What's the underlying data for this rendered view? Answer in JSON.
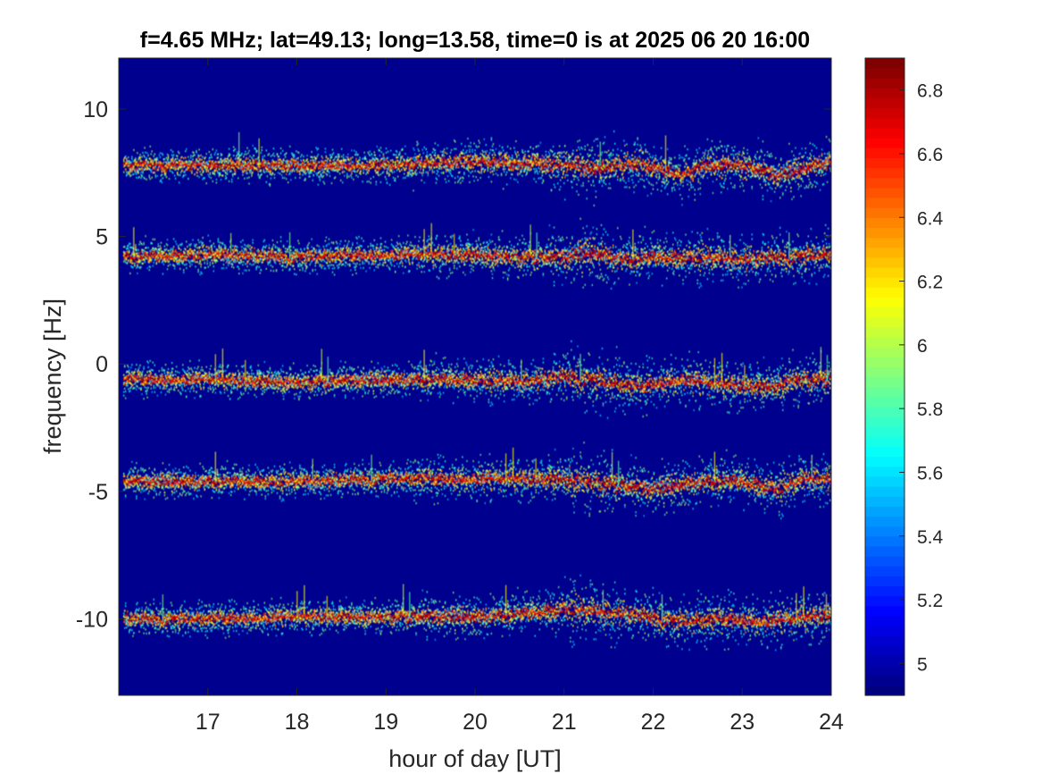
{
  "chart_data": {
    "type": "heatmap",
    "title": "f=4.65 MHz;  lat=49.13; long=13.58, time=0 is at 2025 06 20 16:00",
    "xlabel": "hour of day [UT]",
    "ylabel": "frequency [Hz]",
    "xlim": [
      16,
      24
    ],
    "ylim": [
      -13,
      12
    ],
    "x_ticks": [
      17,
      18,
      19,
      20,
      21,
      22,
      23,
      24
    ],
    "y_ticks": [
      -10,
      -5,
      0,
      5,
      10
    ],
    "colorbar": {
      "min": 4.9,
      "max": 6.9,
      "ticks": [
        "5",
        "5.2",
        "5.4",
        "5.6",
        "5.8",
        "6",
        "6.2",
        "6.4",
        "6.6",
        "6.8"
      ],
      "colormap": "jet",
      "background_color": "#00008f"
    },
    "traces": [
      {
        "center_hz": 7.8,
        "points": [
          [
            16.05,
            7.8
          ],
          [
            17,
            7.8
          ],
          [
            18,
            7.8
          ],
          [
            19,
            7.8
          ],
          [
            19.5,
            7.9
          ],
          [
            20,
            7.95
          ],
          [
            20.5,
            7.9
          ],
          [
            21,
            7.8
          ],
          [
            21.4,
            7.7
          ],
          [
            21.8,
            7.9
          ],
          [
            22.3,
            7.4
          ],
          [
            22.6,
            7.8
          ],
          [
            23,
            7.8
          ],
          [
            23.4,
            7.4
          ],
          [
            23.8,
            7.8
          ],
          [
            24,
            8.0
          ]
        ]
      },
      {
        "center_hz": 4.2,
        "points": [
          [
            16.05,
            4.2
          ],
          [
            17,
            4.3
          ],
          [
            18,
            4.2
          ],
          [
            19,
            4.3
          ],
          [
            20,
            4.3
          ],
          [
            20.5,
            4.2
          ],
          [
            21,
            4.2
          ],
          [
            21.3,
            4.4
          ],
          [
            21.7,
            4.1
          ],
          [
            22,
            4.2
          ],
          [
            22.5,
            4.2
          ],
          [
            23,
            4.1
          ],
          [
            23.5,
            4.2
          ],
          [
            24,
            4.3
          ]
        ]
      },
      {
        "center_hz": -0.6,
        "points": [
          [
            16.05,
            -0.6
          ],
          [
            17,
            -0.6
          ],
          [
            18,
            -0.7
          ],
          [
            19,
            -0.6
          ],
          [
            20,
            -0.6
          ],
          [
            20.5,
            -0.7
          ],
          [
            21,
            -0.5
          ],
          [
            21.3,
            -0.6
          ],
          [
            21.8,
            -0.9
          ],
          [
            22.3,
            -0.6
          ],
          [
            22.8,
            -0.8
          ],
          [
            23.3,
            -0.9
          ],
          [
            23.6,
            -0.6
          ],
          [
            24,
            -0.6
          ]
        ]
      },
      {
        "center_hz": -4.6,
        "points": [
          [
            16.05,
            -4.6
          ],
          [
            17,
            -4.6
          ],
          [
            18,
            -4.6
          ],
          [
            19,
            -4.5
          ],
          [
            20,
            -4.5
          ],
          [
            20.5,
            -4.5
          ],
          [
            21,
            -4.5
          ],
          [
            21.3,
            -4.6
          ],
          [
            21.7,
            -4.8
          ],
          [
            22,
            -4.9
          ],
          [
            22.5,
            -4.6
          ],
          [
            23,
            -4.6
          ],
          [
            23.4,
            -4.9
          ],
          [
            23.7,
            -4.5
          ],
          [
            24,
            -4.5
          ]
        ]
      },
      {
        "center_hz": -9.9,
        "points": [
          [
            16.05,
            -10.0
          ],
          [
            17,
            -10.0
          ],
          [
            18,
            -9.9
          ],
          [
            19,
            -9.9
          ],
          [
            19.5,
            -9.9
          ],
          [
            20,
            -9.9
          ],
          [
            20.5,
            -9.8
          ],
          [
            21,
            -9.6
          ],
          [
            21.3,
            -9.7
          ],
          [
            21.7,
            -9.8
          ],
          [
            22.3,
            -10.1
          ],
          [
            22.8,
            -10.0
          ],
          [
            23.3,
            -10.1
          ],
          [
            23.8,
            -9.9
          ],
          [
            24,
            -9.8
          ]
        ]
      }
    ]
  }
}
